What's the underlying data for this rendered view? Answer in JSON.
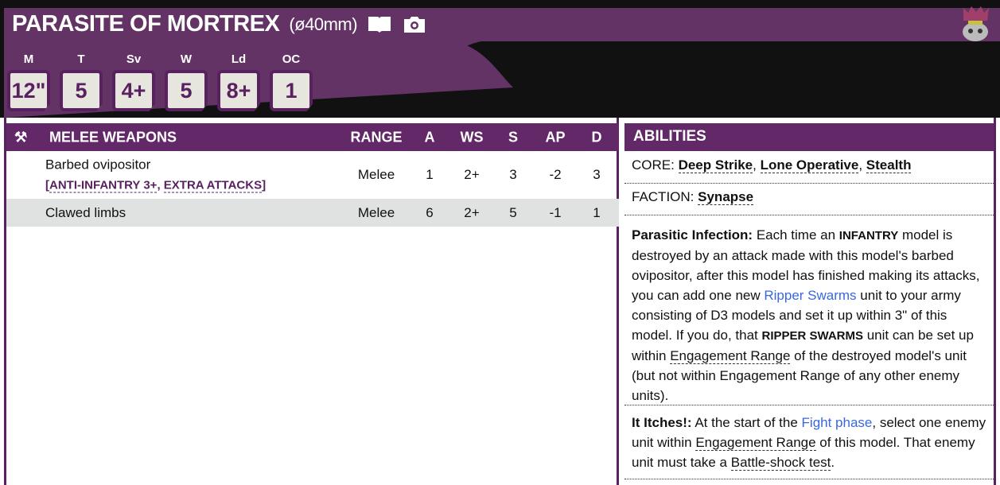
{
  "unit": {
    "name": "PARASITE OF MORTREX",
    "base": "(ø40mm)",
    "icons": [
      "book-icon",
      "camera-icon"
    ],
    "portrait": "tyranid-portrait"
  },
  "stats": [
    {
      "label": "M",
      "value": "12\""
    },
    {
      "label": "T",
      "value": "5"
    },
    {
      "label": "Sv",
      "value": "4+"
    },
    {
      "label": "W",
      "value": "5"
    },
    {
      "label": "Ld",
      "value": "8+"
    },
    {
      "label": "OC",
      "value": "1"
    }
  ],
  "weapons": {
    "header": "MELEE WEAPONS",
    "columns": [
      "RANGE",
      "A",
      "WS",
      "S",
      "AP",
      "D"
    ],
    "rows": [
      {
        "name": "Barbed ovipositor",
        "keywords": [
          "ANTI-INFANTRY 3+",
          "EXTRA ATTACKS"
        ],
        "values": [
          "Melee",
          "1",
          "2+",
          "3",
          "-2",
          "3"
        ]
      },
      {
        "name": "Clawed limbs",
        "values": [
          "Melee",
          "6",
          "2+",
          "5",
          "-1",
          "1"
        ]
      }
    ]
  },
  "abilities": {
    "header": "ABILITIES",
    "core_label": "CORE:",
    "core": [
      "Deep Strike",
      "Lone Operative",
      "Stealth"
    ],
    "faction_label": "FACTION:",
    "faction": "Synapse",
    "parasitic": {
      "title": "Parasitic Infection:",
      "t1": " Each time an ",
      "k1": "INFANTRY",
      "t2": " model is destroyed by an attack made with this model's barbed ovipositor, after this model has finished making its attacks, you can add one new ",
      "link": "Ripper Swarms",
      "t3": " unit to your army consisting of D3 models and set it up within 3\" of this model. If you do, that ",
      "k2": "RIPPER SWARMS",
      "t4": " unit can be set up within ",
      "u1": "Engagement Range",
      "t5": " of the destroyed model's unit (but not within Engagement Range of any other enemy units)."
    },
    "itches": {
      "title": "It Itches!:",
      "t1": " At the start of the ",
      "link": "Fight phase",
      "t2": ", select one enemy unit within ",
      "u1": "Engagement Range",
      "t3": " of this model. That enemy unit must take a ",
      "u2": "Battle-shock test",
      "t4": "."
    }
  },
  "colors": {
    "primary": "#622868",
    "header_band": "#623364",
    "link": "#3a67e0"
  }
}
